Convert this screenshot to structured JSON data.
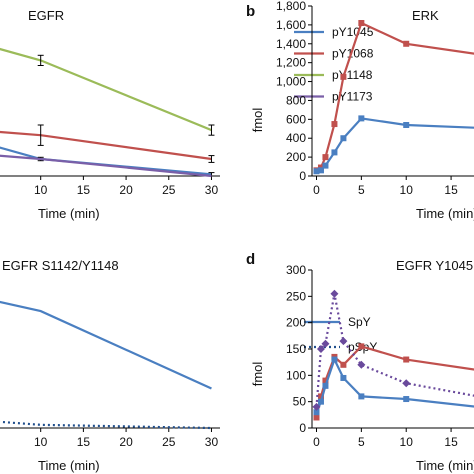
{
  "chart_data": [
    {
      "type": "line",
      "panel_label": "",
      "title": "EGFR",
      "xlabel": "Time (min)",
      "ylabel": "",
      "x_ticks": [
        10,
        15,
        20,
        25,
        30
      ],
      "ylim": [
        0,
        100
      ],
      "xlim": [
        5,
        31
      ],
      "legend_position": "top-right",
      "series": [
        {
          "name": "pY1045",
          "color": "#4a7fc1",
          "x": [
            5,
            10,
            30
          ],
          "y": [
            17,
            10,
            1
          ]
        },
        {
          "name": "pY1068",
          "color": "#c0504d",
          "x": [
            5,
            10,
            30
          ],
          "y": [
            26,
            24,
            10
          ]
        },
        {
          "name": "pY1148",
          "color": "#9bbb59",
          "x": [
            5,
            10,
            30
          ],
          "y": [
            75,
            68,
            27
          ]
        },
        {
          "name": "pY1173",
          "color": "#7a5fa8",
          "x": [
            5,
            10,
            30
          ],
          "y": [
            12,
            10,
            0
          ]
        }
      ],
      "error": {
        "pY1068": [
          0,
          6,
          2
        ],
        "pY1148": [
          0,
          3,
          3
        ],
        "pY1045": [
          0,
          1,
          1
        ]
      }
    },
    {
      "type": "line",
      "panel_label": "b",
      "title": "ERK",
      "xlabel": "Time (min)",
      "ylabel": "fmol",
      "y_ticks": [
        "0",
        "200",
        "400",
        "600",
        "800",
        "1,000",
        "1,200",
        "1,400",
        "1,600",
        "1,800"
      ],
      "x_ticks": [
        0,
        5,
        10,
        15
      ],
      "ylim": [
        0,
        1800
      ],
      "xlim": [
        -0.5,
        18
      ],
      "series": [
        {
          "color": "#c0504d",
          "x": [
            0,
            0.5,
            1,
            2,
            3,
            5,
            10,
            18
          ],
          "y": [
            60,
            90,
            200,
            550,
            1050,
            1620,
            1400,
            1290
          ]
        },
        {
          "color": "#4a7fc1",
          "x": [
            0,
            0.5,
            1,
            2,
            3,
            5,
            10,
            18
          ],
          "y": [
            50,
            60,
            110,
            250,
            400,
            610,
            540,
            510
          ]
        }
      ]
    },
    {
      "type": "line",
      "panel_label": "",
      "title": "EGFR S1142/Y1148",
      "xlabel": "Time (min)",
      "ylabel": "",
      "x_ticks": [
        10,
        15,
        20,
        25,
        30
      ],
      "ylim": [
        0,
        100
      ],
      "xlim": [
        5,
        31
      ],
      "legend_position": "right",
      "series": [
        {
          "name": "SpY",
          "color": "#4a7fc1",
          "style": "solid",
          "x": [
            5,
            10,
            30
          ],
          "y": [
            80,
            74,
            25
          ]
        },
        {
          "name": "pSpY",
          "color": "#1f4e8c",
          "style": "dotted",
          "x": [
            5,
            10,
            30
          ],
          "y": [
            4,
            2,
            0
          ]
        }
      ]
    },
    {
      "type": "line",
      "panel_label": "d",
      "title": "EGFR Y1045",
      "xlabel": "Time (min)",
      "ylabel": "fmol",
      "y_ticks": [
        "0",
        "50",
        "100",
        "150",
        "200",
        "250",
        "300"
      ],
      "x_ticks": [
        0,
        5,
        10,
        15
      ],
      "ylim": [
        0,
        300
      ],
      "xlim": [
        -0.5,
        18
      ],
      "series": [
        {
          "color": "#c0504d",
          "style": "solid",
          "x": [
            0,
            0.5,
            1,
            2,
            3,
            5,
            10,
            18
          ],
          "y": [
            20,
            60,
            90,
            135,
            120,
            155,
            130,
            110
          ]
        },
        {
          "color": "#4a7fc1",
          "style": "solid",
          "x": [
            0,
            0.5,
            1,
            2,
            3,
            5,
            10,
            18
          ],
          "y": [
            30,
            50,
            80,
            130,
            95,
            60,
            55,
            40
          ]
        },
        {
          "color": "#6a4a9c",
          "style": "dotted",
          "x": [
            0,
            0.5,
            1,
            2,
            3,
            5,
            10,
            18
          ],
          "y": [
            40,
            150,
            160,
            255,
            165,
            120,
            85,
            60
          ]
        }
      ]
    }
  ]
}
